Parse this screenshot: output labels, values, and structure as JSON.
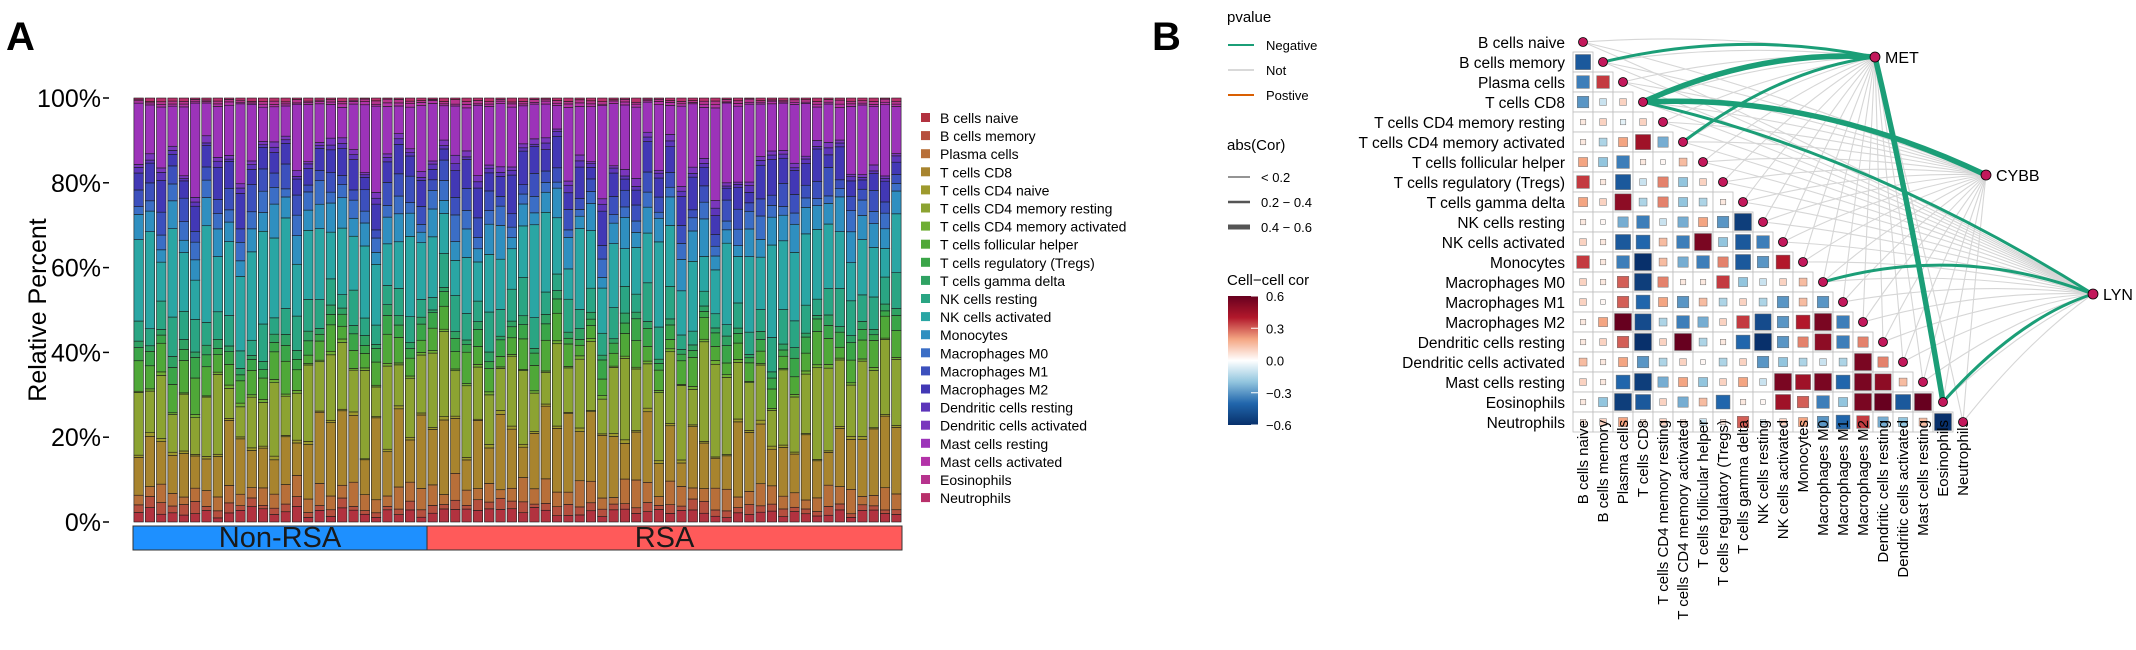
{
  "panels": {
    "a_label": "A",
    "b_label": "B"
  },
  "chart_data": [
    {
      "type": "bar",
      "subtype": "stacked-percent",
      "title": "",
      "ylabel": "Relative Percent",
      "xlabel": "",
      "ylim": [
        0,
        100
      ],
      "yticks": [
        "0%",
        "20%",
        "40%",
        "60%",
        "80%",
        "100%"
      ],
      "sample_count": 68,
      "groups": [
        {
          "name": "Non-RSA",
          "count": 26,
          "color": "#1e90ff"
        },
        {
          "name": "RSA",
          "count": 42,
          "color": "#ff5a5a"
        }
      ],
      "series": [
        {
          "name": "B cells naive",
          "color": "#b2323f",
          "mean": 2
        },
        {
          "name": "B cells memory",
          "color": "#b64f3e",
          "mean": 1.5
        },
        {
          "name": "Plasma cells",
          "color": "#b86f39",
          "mean": 3.5
        },
        {
          "name": "T cells CD8",
          "color": "#a8842e",
          "mean": 11
        },
        {
          "name": "T cells CD4 naive",
          "color": "#9e9a2d",
          "mean": 0.5
        },
        {
          "name": "T cells CD4 memory resting",
          "color": "#8ca332",
          "mean": 13
        },
        {
          "name": "T cells CD4 memory activated",
          "color": "#6fae34",
          "mean": 0.5
        },
        {
          "name": "T cells follicular helper",
          "color": "#4fa838",
          "mean": 4.5
        },
        {
          "name": "T cells regulatory (Tregs)",
          "color": "#3aa548",
          "mean": 2.5
        },
        {
          "name": "T cells gamma delta",
          "color": "#2fa263",
          "mean": 1.5
        },
        {
          "name": "NK cells resting",
          "color": "#2aa583",
          "mean": 5.5
        },
        {
          "name": "NK cells activated",
          "color": "#2aa6a4",
          "mean": 13
        },
        {
          "name": "Monocytes",
          "color": "#2f8fc0",
          "mean": 4.5
        },
        {
          "name": "Macrophages M0",
          "color": "#3b6ec6",
          "mean": 3
        },
        {
          "name": "Macrophages M1",
          "color": "#3c50bd",
          "mean": 3.5
        },
        {
          "name": "Macrophages M2",
          "color": "#4238b5",
          "mean": 5
        },
        {
          "name": "Dendritic cells resting",
          "color": "#5d35ba",
          "mean": 1
        },
        {
          "name": "Dendritic cells activated",
          "color": "#7a36bd",
          "mean": 1
        },
        {
          "name": "Mast cells resting",
          "color": "#9c33b9",
          "mean": 12
        },
        {
          "name": "Mast cells activated",
          "color": "#b332a8",
          "mean": 0.5
        },
        {
          "name": "Eosinophils",
          "color": "#b7338e",
          "mean": 0.5
        },
        {
          "name": "Neutrophils",
          "color": "#b8306a",
          "mean": 0.5
        }
      ]
    },
    {
      "type": "heatmap",
      "subtype": "correlation-with-network",
      "cells": [
        "B cells naive",
        "B cells memory",
        "Plasma cells",
        "T cells CD8",
        "T cells CD4 memory resting",
        "T cells CD4 memory activated",
        "T cells follicular helper",
        "T cells regulatory (Tregs)",
        "T cells gamma delta",
        "NK cells resting",
        "NK cells activated",
        "Monocytes",
        "Macrophages M0",
        "Macrophages M1",
        "Macrophages M2",
        "Dendritic cells resting",
        "Dendritic cells activated",
        "Mast cells resting",
        "Eosinophils",
        "Neutrophils"
      ],
      "matrix": [
        [
          -0.55
        ],
        [
          -0.45,
          0.3
        ],
        [
          -0.35,
          0.35,
          0
        ],
        [
          -0.3,
          -0.1,
          0.1,
          0
        ],
        [
          0.05,
          0.1,
          -0.05,
          0.1,
          0
        ],
        [
          0.05,
          -0.15,
          0.2,
          0.45,
          -0.25,
          0
        ],
        [
          0.2,
          -0.2,
          -0.35,
          0.05,
          0.02,
          0.15,
          0
        ],
        [
          0.35,
          0.05,
          -0.45,
          -0.1,
          0.25,
          -0.2,
          0.1,
          0
        ],
        [
          0.2,
          0.1,
          0.5,
          -0.15,
          0.25,
          -0.2,
          -0.15,
          0.05,
          0
        ],
        [
          0.05,
          0.02,
          -0.25,
          -0.35,
          -0.1,
          -0.25,
          0.2,
          -0.3,
          -0.55,
          0
        ],
        [
          0.1,
          0.05,
          -0.45,
          -0.4,
          0.15,
          -0.35,
          0.55,
          -0.2,
          -0.45,
          -0.35,
          0
        ],
        [
          0.35,
          0.05,
          -0.35,
          -0.6,
          0.15,
          -0.25,
          -0.35,
          0.25,
          -0.45,
          -0.3,
          0.4,
          0
        ],
        [
          0.1,
          0.05,
          0.3,
          -0.55,
          0.25,
          0.05,
          0.05,
          0.35,
          -0.2,
          -0.1,
          0.1,
          0.15,
          0
        ],
        [
          0.1,
          0.02,
          0.3,
          -0.4,
          0.2,
          -0.3,
          0.15,
          -0.15,
          0.1,
          -0.15,
          -0.3,
          0.15,
          -0.3,
          0
        ],
        [
          0.05,
          0.2,
          0.6,
          -0.5,
          -0.15,
          -0.35,
          -0.25,
          0.1,
          0.35,
          -0.5,
          -0.3,
          0.4,
          0.55,
          -0.35,
          0
        ],
        [
          0.05,
          0.1,
          0.3,
          -0.6,
          0.1,
          0.6,
          -0.15,
          0.05,
          -0.4,
          -0.6,
          -0.3,
          0.25,
          0.5,
          -0.35,
          0.25
        ],
        [
          0.15,
          0.05,
          0.2,
          -0.3,
          -0.15,
          0.1,
          0.02,
          -0.15,
          0.1,
          -0.3,
          -0.2,
          -0.15,
          -0.1,
          -0.15,
          0.55,
          0.25
        ],
        [
          0.1,
          0.05,
          -0.4,
          -0.55,
          -0.25,
          0.2,
          -0.2,
          0.1,
          0.2,
          -0.1,
          0.55,
          0.45,
          0.55,
          -0.4,
          0.55,
          0.5,
          0.15
        ],
        [
          0.05,
          -0.2,
          -0.55,
          -0.45,
          0.1,
          -0.25,
          0.15,
          -0.4,
          0.05,
          0.02,
          0.45,
          0.3,
          -0.35,
          -0.2,
          0.55,
          0.6,
          -0.45,
          0.6
        ],
        [
          0.05,
          0.1,
          0.2,
          0.05,
          0.1,
          0.05,
          -0.1,
          0.05,
          0.3,
          -0.05,
          0.1,
          0.2,
          -0.3,
          -0.4,
          0.35,
          -0.25,
          -0.2,
          0.15,
          -0.65
        ]
      ],
      "genes": [
        "MET",
        "CYBB",
        "LYN"
      ],
      "links": [
        {
          "gene": "MET",
          "cell": "B cells naive",
          "pvalue": "Positive",
          "cor": "0.4 - 0.6"
        },
        {
          "gene": "MET",
          "cell": "B cells memory",
          "pvalue": "Negative",
          "cor": "0.2 - 0.4"
        },
        {
          "gene": "MET",
          "cell": "T cells CD8",
          "pvalue": "Negative",
          "cor": "0.4 - 0.6"
        },
        {
          "gene": "MET",
          "cell": "T cells CD4 memory activated",
          "pvalue": "Negative",
          "cor": "0.2 - 0.4"
        },
        {
          "gene": "MET",
          "cell": "Macrophages M2",
          "pvalue": "Positive",
          "cor": "0.2 - 0.4"
        },
        {
          "gene": "MET",
          "cell": "Eosinophils",
          "pvalue": "Negative",
          "cor": "0.4 - 0.6"
        },
        {
          "gene": "CYBB",
          "cell": "B cells naive",
          "pvalue": "Positive",
          "cor": "0.2 - 0.4"
        },
        {
          "gene": "CYBB",
          "cell": "T cells CD8",
          "pvalue": "Negative",
          "cor": "0.4 - 0.6"
        },
        {
          "gene": "CYBB",
          "cell": "Macrophages M2",
          "pvalue": "Positive",
          "cor": "0.4 - 0.6"
        },
        {
          "gene": "LYN",
          "cell": "T cells CD8",
          "pvalue": "Negative",
          "cor": "0.2 - 0.4"
        },
        {
          "gene": "LYN",
          "cell": "Macrophages M0",
          "pvalue": "Negative",
          "cor": "0.2 - 0.4"
        },
        {
          "gene": "LYN",
          "cell": "Macrophages M2",
          "pvalue": "Positive",
          "cor": "0.4 - 0.6"
        },
        {
          "gene": "LYN",
          "cell": "Eosinophils",
          "pvalue": "Negative",
          "cor": "0.2 - 0.4"
        }
      ],
      "legend": {
        "pvalue_title": "pvalue",
        "pvalue_items": [
          {
            "label": "Negative",
            "color": "#1b9e77"
          },
          {
            "label": "Not",
            "color": "#d9d9d9"
          },
          {
            "label": "Postive",
            "color": "#d95f02"
          }
        ],
        "abscor_title": "abs(Cor)",
        "abscor_items": [
          "< 0.2",
          "0.2 − 0.4",
          "0.4 − 0.6"
        ],
        "cor_title": "Cell−cell cor",
        "cor_ticks": [
          "0.6",
          "0.3",
          "0.0",
          "−0.3",
          "−0.6"
        ],
        "cor_range": [
          -0.6,
          0.6
        ]
      }
    }
  ]
}
